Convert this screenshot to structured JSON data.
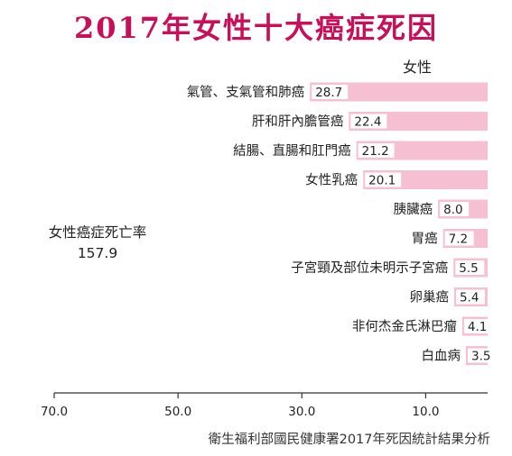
{
  "title": "2017年女性十大癌症死因",
  "source": "衛生福利部國民健康署2017年死因統計結果分析",
  "colors": {
    "title": "#c8105a",
    "bar": "#f6bfd2",
    "bar_label_bg": "#ffffff",
    "text": "#222222",
    "axis": "#333333"
  },
  "chart_data": {
    "type": "bar",
    "orientation": "horizontal",
    "x_direction": "reversed",
    "series": [
      {
        "name": "女性",
        "values": [
          28.7,
          22.4,
          21.2,
          20.1,
          8.0,
          7.2,
          5.5,
          5.4,
          4.1,
          3.5
        ]
      }
    ],
    "categories": [
      "氣管、支氣管和肺癌",
      "肝和肝內膽管癌",
      "結腸、直腸和肛門癌",
      "女性乳癌",
      "胰臟癌",
      "胃癌",
      "子宮頸及部位未明示子宮癌",
      "卵巢癌",
      "非何杰金氏淋巴瘤",
      "白血病"
    ],
    "value_labels": [
      "28.7",
      "22.4",
      "21.2",
      "20.1",
      "8.0",
      "7.2",
      "5.5",
      "5.4",
      "4.1",
      "3.5"
    ],
    "total_label": "女性癌症死亡率",
    "total_value": "157.9",
    "xlim": [
      70,
      0
    ],
    "x_ticks": [
      70,
      50,
      30,
      10
    ],
    "x_tick_labels": [
      "70.0",
      "50.0",
      "30.0",
      "10.0"
    ],
    "grid": false,
    "legend": "top-right"
  }
}
